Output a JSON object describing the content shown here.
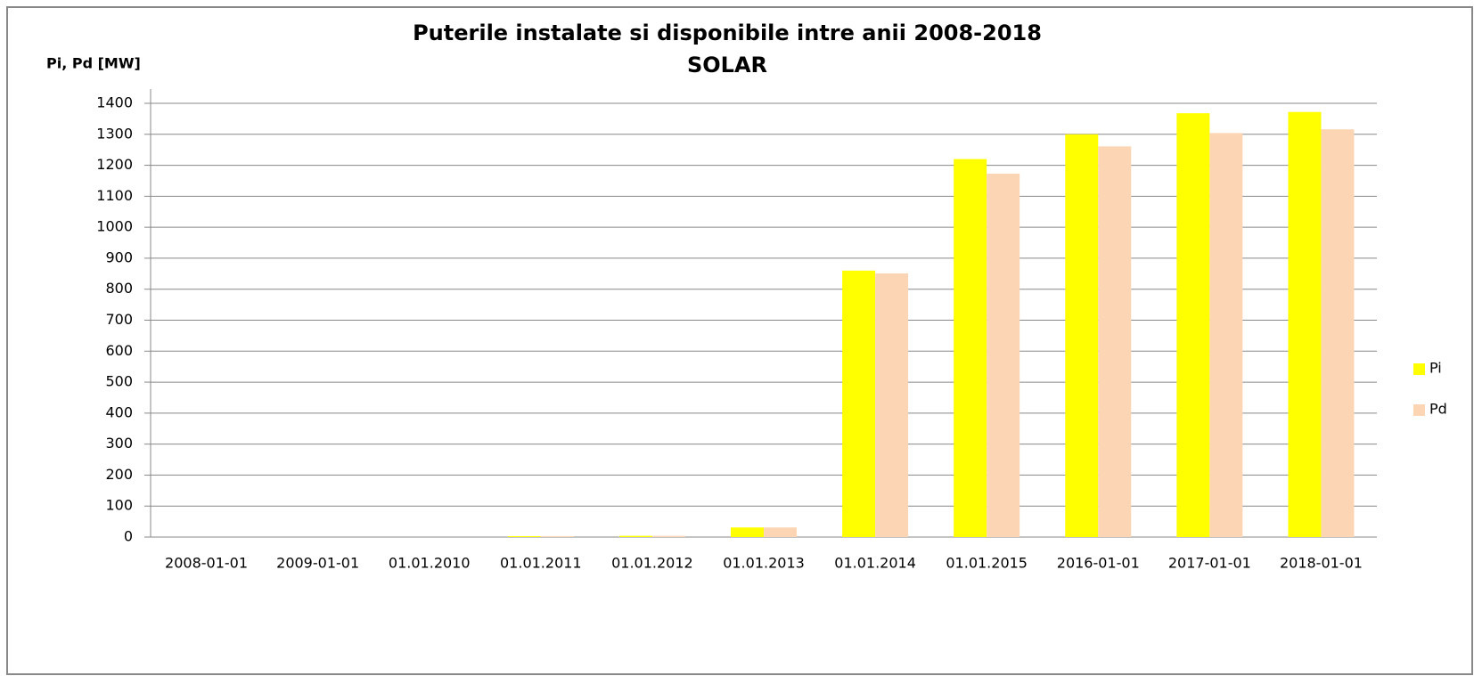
{
  "chart_data": {
    "type": "bar",
    "title": "Puterile instalate si disponibile intre anii 2008-2018",
    "subtitle": "SOLAR",
    "y_label": "Pi, Pd [MW]",
    "categories": [
      "2008-01-01",
      "2009-01-01",
      "01.01.2010",
      "01.01.2011",
      "01.01.2012",
      "01.01.2013",
      "01.01.2014",
      "01.01.2015",
      "2016-01-01",
      "2017-01-01",
      "2018-01-01"
    ],
    "series": [
      {
        "name": "Pi",
        "color": "#ffff00",
        "values": [
          0,
          0,
          0,
          3,
          4,
          31,
          860,
          1220,
          1300,
          1368,
          1372
        ]
      },
      {
        "name": "Pd",
        "color": "#fcd5b5",
        "values": [
          0,
          0,
          0,
          3,
          4,
          31,
          851,
          1173,
          1261,
          1304,
          1316
        ]
      }
    ],
    "ylim": [
      0,
      1400
    ],
    "yticks": [
      0,
      100,
      200,
      300,
      400,
      500,
      600,
      700,
      800,
      900,
      1000,
      1100,
      1200,
      1300,
      1400
    ],
    "grid": true,
    "legend": "right"
  }
}
